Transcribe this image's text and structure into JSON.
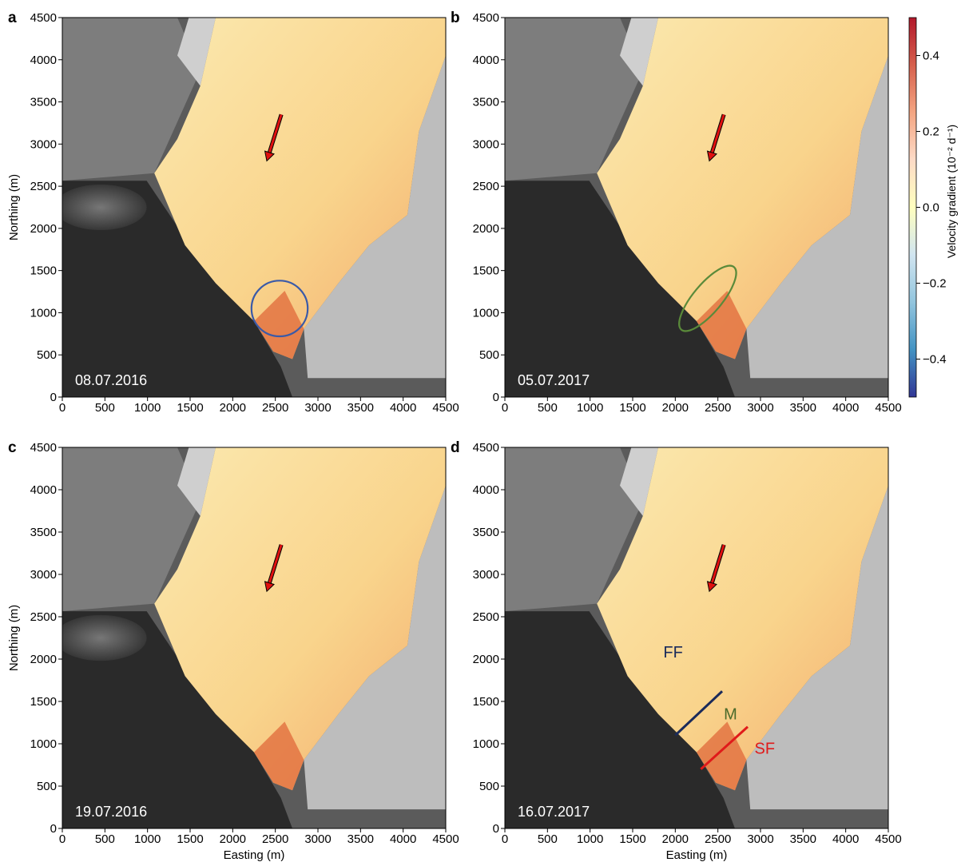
{
  "chart_data": [
    {
      "panel": "a",
      "type": "heatmap",
      "date_label": "08.07.2016",
      "xlabel": "",
      "ylabel": "Northing (m)",
      "xlim": [
        0,
        4500
      ],
      "ylim": [
        0,
        4500
      ],
      "xticks": [
        0,
        500,
        1000,
        1500,
        2000,
        2500,
        3000,
        3500,
        4000,
        4500
      ],
      "yticks": [
        0,
        500,
        1000,
        1500,
        2000,
        2500,
        3000,
        3500,
        4000,
        4500
      ],
      "arrow": {
        "from": [
          2570,
          3350
        ],
        "to": [
          2400,
          2800
        ],
        "color": "#e01010"
      },
      "annotations": [
        {
          "shape": "circle",
          "center": [
            2550,
            1050
          ],
          "rx": 330,
          "ry": 330,
          "rotation": 0,
          "color": "#3a5aa8"
        }
      ],
      "lines": [],
      "labels": []
    },
    {
      "panel": "b",
      "type": "heatmap",
      "date_label": "05.07.2017",
      "xlabel": "",
      "ylabel": "",
      "xlim": [
        0,
        4500
      ],
      "ylim": [
        0,
        4500
      ],
      "xticks": [
        0,
        500,
        1000,
        1500,
        2000,
        2500,
        3000,
        3500,
        4000,
        4500
      ],
      "yticks": [
        0,
        500,
        1000,
        1500,
        2000,
        2500,
        3000,
        3500,
        4000,
        4500
      ],
      "arrow": {
        "from": [
          2570,
          3350
        ],
        "to": [
          2400,
          2800
        ],
        "color": "#e01010"
      },
      "annotations": [
        {
          "shape": "ellipse",
          "center": [
            2380,
            1170
          ],
          "rx": 480,
          "ry": 170,
          "rotation": -50,
          "color": "#5a8a3a"
        }
      ],
      "lines": [],
      "labels": []
    },
    {
      "panel": "c",
      "type": "heatmap",
      "date_label": "19.07.2016",
      "xlabel": "Easting (m)",
      "ylabel": "Northing (m)",
      "xlim": [
        0,
        4500
      ],
      "ylim": [
        0,
        4500
      ],
      "xticks": [
        0,
        500,
        1000,
        1500,
        2000,
        2500,
        3000,
        3500,
        4000,
        4500
      ],
      "yticks": [
        0,
        500,
        1000,
        1500,
        2000,
        2500,
        3000,
        3500,
        4000,
        4500
      ],
      "arrow": {
        "from": [
          2570,
          3350
        ],
        "to": [
          2400,
          2800
        ],
        "color": "#e01010"
      },
      "annotations": [],
      "lines": [],
      "labels": []
    },
    {
      "panel": "d",
      "type": "heatmap",
      "date_label": "16.07.2017",
      "xlabel": "Easting (m)",
      "ylabel": "",
      "xlim": [
        0,
        4500
      ],
      "ylim": [
        0,
        4500
      ],
      "xticks": [
        0,
        500,
        1000,
        1500,
        2000,
        2500,
        3000,
        3500,
        4000,
        4500
      ],
      "yticks": [
        0,
        500,
        1000,
        1500,
        2000,
        2500,
        3000,
        3500,
        4000,
        4500
      ],
      "arrow": {
        "from": [
          2570,
          3350
        ],
        "to": [
          2400,
          2800
        ],
        "color": "#e01010"
      },
      "annotations": [],
      "lines": [
        {
          "from": [
            2000,
            1100
          ],
          "to": [
            2550,
            1620
          ],
          "color": "#1a2a5a"
        },
        {
          "from": [
            2300,
            700
          ],
          "to": [
            2850,
            1200
          ],
          "color": "#e01a1a"
        }
      ],
      "labels": [
        {
          "text": "FF",
          "at": [
            1860,
            2020
          ],
          "color": "#1a2a5a"
        },
        {
          "text": "M",
          "at": [
            2570,
            1290
          ],
          "color": "#4a6a2a"
        },
        {
          "text": "SF",
          "at": [
            2930,
            880
          ],
          "color": "#e01a1a"
        }
      ]
    }
  ],
  "colorbar": {
    "label": "Velocity gradient (10⁻² d⁻¹)",
    "range": [
      -0.5,
      0.5
    ],
    "ticks": [
      0.4,
      0.2,
      0.0,
      -0.2,
      -0.4
    ],
    "tick_labels": [
      "0.4",
      "0.2",
      "0.0",
      "−0.2",
      "−0.4"
    ],
    "colors": [
      "#b2182b",
      "#d6604d",
      "#f4a582",
      "#fddbc7",
      "#ffffbf",
      "#d1e5f0",
      "#92c5de",
      "#4393c3",
      "#313695"
    ]
  },
  "panel_letters": [
    "a",
    "b",
    "c",
    "d"
  ]
}
